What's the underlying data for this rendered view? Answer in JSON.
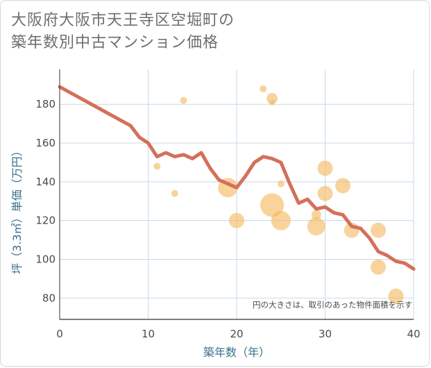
{
  "chart_data": {
    "type": "scatter+line",
    "title_lines": [
      "大阪府大阪市天王寺区空堀町の",
      "築年数別中古マンション価格"
    ],
    "xlabel": "築年数（年）",
    "ylabel": "坪（3.3㎡）単価（万円）",
    "annotation": "円の大きさは、取引のあった物件面積を示す",
    "xlim": [
      0,
      40
    ],
    "ylim": [
      69,
      198
    ],
    "x_ticks": [
      0,
      10,
      20,
      30,
      40
    ],
    "y_ticks": [
      80,
      100,
      120,
      140,
      160,
      180
    ],
    "grid": true,
    "colors": {
      "line": "#d4705a",
      "bubble": "#f3b85a",
      "grid": "#c8d8e6",
      "axis": "#333333"
    },
    "trend_line": {
      "x": [
        0,
        2,
        4,
        6,
        8,
        9,
        10,
        11,
        12,
        13,
        14,
        15,
        16,
        17,
        18,
        19,
        20,
        21,
        22,
        23,
        24,
        25,
        26,
        27,
        28,
        29,
        30,
        31,
        32,
        33,
        34,
        35,
        36,
        37,
        38,
        39,
        40
      ],
      "y": [
        189,
        184,
        179,
        174,
        169,
        163,
        160,
        153,
        155,
        153,
        154,
        152,
        155,
        147,
        141,
        139,
        137,
        143,
        150,
        153,
        152,
        150,
        139,
        129,
        131,
        126,
        127,
        124,
        123,
        117,
        116,
        111,
        104,
        102,
        99,
        98,
        95
      ]
    },
    "bubbles": [
      {
        "x": 11,
        "y": 148,
        "size": 5
      },
      {
        "x": 13,
        "y": 134,
        "size": 5
      },
      {
        "x": 14,
        "y": 182,
        "size": 5
      },
      {
        "x": 19,
        "y": 137,
        "size": 14
      },
      {
        "x": 20,
        "y": 120,
        "size": 11
      },
      {
        "x": 23,
        "y": 188,
        "size": 5
      },
      {
        "x": 24,
        "y": 183,
        "size": 8
      },
      {
        "x": 24,
        "y": 181,
        "size": 4
      },
      {
        "x": 24,
        "y": 128,
        "size": 17
      },
      {
        "x": 25,
        "y": 139,
        "size": 5
      },
      {
        "x": 25,
        "y": 120,
        "size": 14
      },
      {
        "x": 29,
        "y": 123,
        "size": 7
      },
      {
        "x": 29,
        "y": 117,
        "size": 13
      },
      {
        "x": 30,
        "y": 147,
        "size": 11
      },
      {
        "x": 30,
        "y": 134,
        "size": 11
      },
      {
        "x": 32,
        "y": 138,
        "size": 11
      },
      {
        "x": 33,
        "y": 115,
        "size": 11
      },
      {
        "x": 36,
        "y": 115,
        "size": 11
      },
      {
        "x": 36,
        "y": 96,
        "size": 11
      },
      {
        "x": 38,
        "y": 81,
        "size": 11
      }
    ]
  }
}
